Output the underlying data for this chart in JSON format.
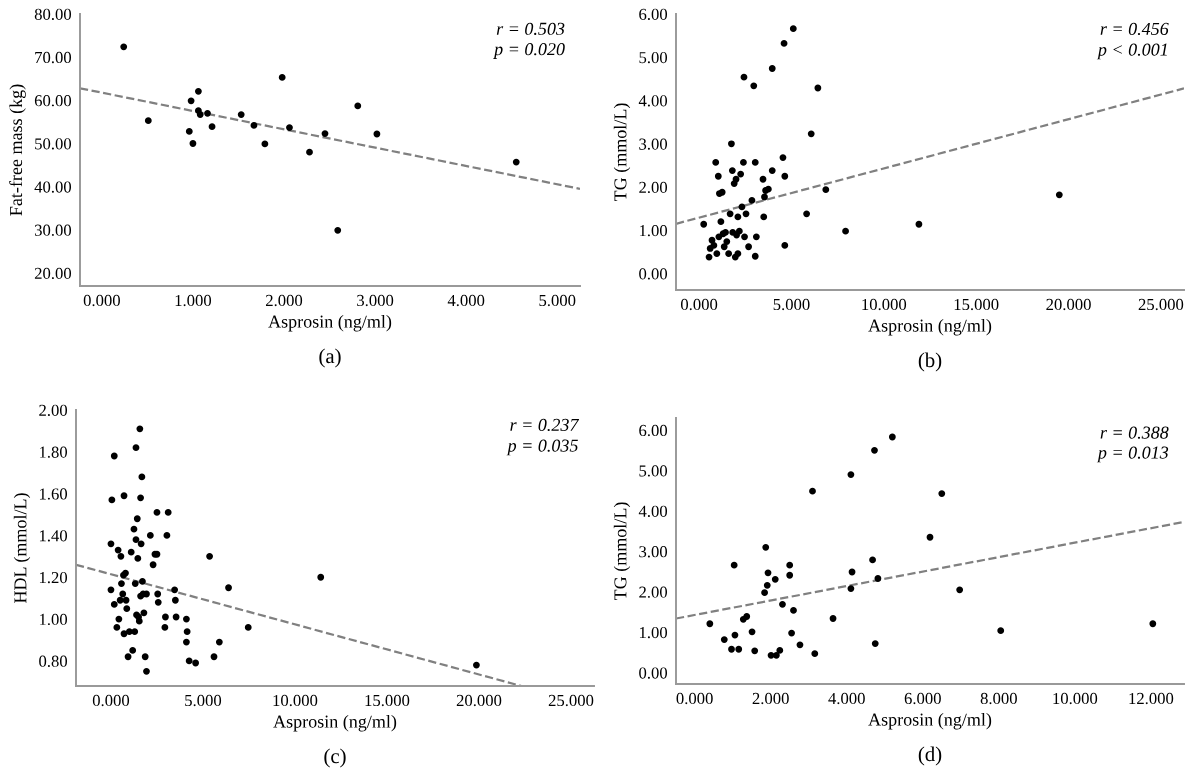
{
  "chart_data": [
    {
      "type": "scatter",
      "xlabel": "Asprosin (ng/ml)",
      "ylabel": "Fat-free mass (kg)",
      "marker": "circle",
      "grid": false,
      "xlim": [
        -0.24,
        5.25
      ],
      "ylim": [
        17,
        80
      ],
      "xticks": [
        {
          "value": 0,
          "label": "0.000"
        },
        {
          "value": 1,
          "label": "1.000"
        },
        {
          "value": 2,
          "label": "2.000"
        },
        {
          "value": 3,
          "label": "3.000"
        },
        {
          "value": 4,
          "label": "4.000"
        },
        {
          "value": 5,
          "label": "5.000"
        }
      ],
      "yticks": [
        {
          "value": 20,
          "label": "20.00"
        },
        {
          "value": 30,
          "label": "30.00"
        },
        {
          "value": 40,
          "label": "40.00"
        },
        {
          "value": 50,
          "label": "50.00"
        },
        {
          "value": 60,
          "label": "60.00"
        },
        {
          "value": 70,
          "label": "70.00"
        },
        {
          "value": 80,
          "label": "80.00"
        }
      ],
      "annotations": [
        "r = 0.503",
        "p = 0.020",
        "(a)"
      ],
      "series": [
        {
          "color": "#000000",
          "x": [
            0.24,
            0.51,
            0.96,
            0.98,
            1.0,
            1.06,
            1.06,
            1.08,
            1.16,
            1.21,
            1.53,
            1.67,
            1.79,
            1.98,
            2.06,
            2.28,
            2.45,
            2.59,
            2.81,
            3.02,
            4.55
          ],
          "values": [
            72.4,
            55.3,
            52.8,
            59.9,
            50.0,
            62.1,
            57.6,
            56.7,
            57.0,
            53.9,
            56.7,
            54.2,
            49.9,
            65.3,
            53.7,
            48.0,
            52.3,
            29.9,
            58.7,
            52.2,
            45.7
          ]
        },
        {
          "type": "line",
          "color": "#808080",
          "line_style": "dashed",
          "marker": "none",
          "x": [
            -0.24,
            5.25
          ],
          "values": [
            62.8,
            39.5
          ]
        }
      ]
    },
    {
      "type": "scatter",
      "xlabel": "Asprosin (ng/ml)",
      "ylabel": "TG (mmol/L)",
      "marker": "circle",
      "grid": false,
      "xlim": [
        -1.25,
        26.25
      ],
      "ylim": [
        -0.38,
        6.0
      ],
      "xticks": [
        {
          "value": 0,
          "label": "0.000"
        },
        {
          "value": 5,
          "label": "5.000"
        },
        {
          "value": 10,
          "label": "10.000"
        },
        {
          "value": 15,
          "label": "15.000"
        },
        {
          "value": 20,
          "label": "20.000"
        },
        {
          "value": 25,
          "label": "25.000"
        }
      ],
      "yticks": [
        {
          "value": 0,
          "label": "0.00"
        },
        {
          "value": 1,
          "label": "1.00"
        },
        {
          "value": 2,
          "label": "2.00"
        },
        {
          "value": 3,
          "label": "3.00"
        },
        {
          "value": 4,
          "label": "4.00"
        },
        {
          "value": 5,
          "label": "5.00"
        },
        {
          "value": 6,
          "label": "6.00"
        }
      ],
      "annotations": [
        "r = 0.456",
        "p < 0.001",
        "(b)"
      ],
      "series": [
        {
          "color": "#000000",
          "x": [
            0.25,
            0.54,
            0.6,
            0.7,
            0.8,
            0.9,
            0.96,
            1.04,
            1.07,
            1.1,
            1.25,
            1.18,
            1.3,
            1.36,
            1.43,
            1.5,
            1.6,
            1.68,
            1.75,
            1.8,
            1.82,
            1.9,
            1.96,
            2.0,
            2.03,
            2.1,
            2.1,
            2.18,
            2.25,
            2.32,
            2.4,
            2.43,
            2.46,
            2.54,
            2.68,
            2.86,
            2.96,
            3.04,
            3.1,
            3.04,
            3.46,
            3.5,
            3.54,
            3.6,
            3.75,
            3.96,
            3.96,
            4.54,
            4.6,
            4.64,
            4.64,
            5.1,
            5.82,
            6.07,
            6.43,
            6.86,
            7.93,
            11.9,
            19.5
          ],
          "values": [
            1.14,
            0.38,
            0.58,
            0.77,
            0.65,
            2.57,
            0.46,
            2.25,
            0.85,
            1.85,
            1.88,
            1.2,
            0.92,
            0.62,
            0.95,
            0.74,
            0.46,
            1.38,
            3.0,
            2.38,
            0.95,
            2.08,
            0.38,
            2.18,
            0.89,
            1.31,
            0.46,
            0.98,
            2.3,
            1.54,
            2.57,
            4.54,
            0.85,
            1.38,
            0.62,
            1.69,
            4.34,
            2.57,
            0.85,
            0.4,
            2.18,
            1.31,
            1.77,
            1.92,
            1.95,
            4.74,
            2.38,
            2.68,
            5.32,
            2.25,
            0.65,
            5.66,
            1.38,
            3.23,
            4.29,
            1.94,
            0.98,
            1.14,
            1.82
          ]
        },
        {
          "type": "line",
          "color": "#808080",
          "line_style": "dashed",
          "marker": "none",
          "x": [
            -1.25,
            26.25
          ],
          "values": [
            1.15,
            4.28
          ]
        }
      ]
    },
    {
      "type": "scatter",
      "xlabel": "Asprosin (ng/ml)",
      "ylabel": "HDL (mmol/L)",
      "marker": "circle",
      "grid": false,
      "xlim": [
        -1.9,
        26.25
      ],
      "ylim": [
        0.68,
        2.0
      ],
      "xticks": [
        {
          "value": 0,
          "label": "0.000"
        },
        {
          "value": 5,
          "label": "5.000"
        },
        {
          "value": 10,
          "label": "10.000"
        },
        {
          "value": 15,
          "label": "15.000"
        },
        {
          "value": 20,
          "label": "20.000"
        },
        {
          "value": 25,
          "label": "25.000"
        }
      ],
      "yticks": [
        {
          "value": 0.8,
          "label": "0.80"
        },
        {
          "value": 1.0,
          "label": "1.00"
        },
        {
          "value": 1.2,
          "label": "1.20"
        },
        {
          "value": 1.4,
          "label": "1.40"
        },
        {
          "value": 1.6,
          "label": "1.60"
        },
        {
          "value": 1.8,
          "label": "1.80"
        },
        {
          "value": 2.0,
          "label": "2.00"
        }
      ],
      "annotations": [
        "r = 0.237",
        "p = 0.035",
        "(c)"
      ],
      "series": [
        {
          "color": "#000000",
          "x": [
            0.0,
            0.0,
            0.05,
            0.18,
            0.18,
            0.32,
            0.39,
            0.43,
            0.5,
            0.54,
            0.57,
            0.64,
            0.68,
            0.71,
            0.71,
            0.79,
            0.82,
            0.86,
            0.93,
            1.0,
            1.1,
            1.18,
            1.25,
            1.29,
            1.32,
            1.36,
            1.36,
            1.39,
            1.43,
            1.46,
            1.5,
            1.54,
            1.57,
            1.61,
            1.61,
            1.64,
            1.68,
            1.71,
            1.75,
            1.79,
            1.86,
            1.93,
            1.93,
            2.14,
            2.29,
            2.39,
            2.5,
            2.5,
            2.54,
            2.57,
            2.93,
            2.96,
            3.04,
            3.11,
            3.46,
            3.5,
            3.54,
            4.1,
            4.1,
            4.14,
            4.25,
            4.6,
            5.36,
            5.6,
            5.89,
            6.39,
            7.46,
            11.4,
            19.86
          ],
          "values": [
            1.36,
            1.14,
            1.57,
            1.78,
            1.07,
            0.96,
            1.33,
            1.0,
            1.09,
            1.3,
            1.17,
            1.12,
            1.21,
            1.59,
            0.93,
            1.22,
            1.09,
            1.05,
            0.82,
            0.94,
            1.32,
            0.85,
            1.43,
            0.94,
            1.17,
            1.82,
            1.38,
            1.02,
            1.48,
            1.29,
            1.01,
            0.99,
            1.91,
            1.11,
            1.58,
            1.36,
            1.68,
            1.18,
            1.12,
            1.03,
            0.82,
            0.75,
            1.12,
            1.4,
            1.26,
            1.31,
            1.51,
            1.31,
            1.12,
            1.08,
            0.96,
            1.01,
            1.4,
            1.51,
            1.14,
            1.09,
            1.01,
            1.0,
            0.89,
            0.94,
            0.8,
            0.79,
            1.3,
            0.82,
            0.89,
            1.15,
            0.96,
            1.2,
            0.78
          ]
        },
        {
          "type": "line",
          "color": "#808080",
          "line_style": "dashed",
          "marker": "none",
          "x": [
            -1.9,
            22.3
          ],
          "values": [
            1.26,
            0.68
          ]
        }
      ]
    },
    {
      "type": "scatter",
      "xlabel": "Asprosin (ng/ml)",
      "ylabel": "TG (mmol/L)",
      "marker": "circle",
      "grid": false,
      "xlim": [
        -0.49,
        12.87
      ],
      "ylim": [
        -0.28,
        6.3
      ],
      "xticks": [
        {
          "value": 0,
          "label": "0.000"
        },
        {
          "value": 2,
          "label": "2.000"
        },
        {
          "value": 4,
          "label": "4.000"
        },
        {
          "value": 6,
          "label": "6.000"
        },
        {
          "value": 8,
          "label": "8.000"
        },
        {
          "value": 10,
          "label": "10.000"
        },
        {
          "value": 12,
          "label": "12.000"
        }
      ],
      "yticks": [
        {
          "value": 0,
          "label": "0.00"
        },
        {
          "value": 1,
          "label": "1.00"
        },
        {
          "value": 2,
          "label": "2.00"
        },
        {
          "value": 3,
          "label": "3.00"
        },
        {
          "value": 4,
          "label": "4.00"
        },
        {
          "value": 5,
          "label": "5.00"
        },
        {
          "value": 6,
          "label": "6.00"
        }
      ],
      "annotations": [
        "r = 0.388",
        "p = 0.013",
        "(d)"
      ],
      "series": [
        {
          "color": "#000000",
          "x": [
            0.4,
            0.78,
            0.97,
            1.04,
            1.06,
            1.16,
            1.28,
            1.37,
            1.51,
            1.58,
            1.84,
            1.87,
            1.91,
            1.93,
            2.01,
            2.12,
            2.15,
            2.24,
            2.31,
            2.5,
            2.5,
            2.55,
            2.6,
            2.77,
            3.1,
            3.16,
            3.64,
            4.11,
            4.11,
            4.14,
            4.68,
            4.73,
            4.75,
            4.82,
            5.2,
            6.19,
            6.5,
            6.97,
            8.05,
            12.05
          ],
          "values": [
            1.21,
            0.82,
            0.58,
            2.66,
            0.93,
            0.58,
            1.32,
            1.39,
            1.01,
            0.54,
            1.98,
            3.1,
            2.16,
            2.47,
            0.43,
            2.31,
            0.43,
            0.55,
            1.69,
            2.41,
            2.66,
            0.98,
            1.54,
            0.69,
            4.49,
            0.47,
            1.34,
            2.08,
            4.9,
            2.49,
            2.79,
            5.5,
            0.72,
            2.33,
            5.83,
            3.35,
            4.43,
            2.05,
            1.04,
            1.21
          ]
        },
        {
          "type": "line",
          "color": "#808080",
          "line_style": "dashed",
          "marker": "none",
          "x": [
            -0.49,
            12.87
          ],
          "values": [
            1.34,
            3.73
          ]
        }
      ]
    }
  ]
}
